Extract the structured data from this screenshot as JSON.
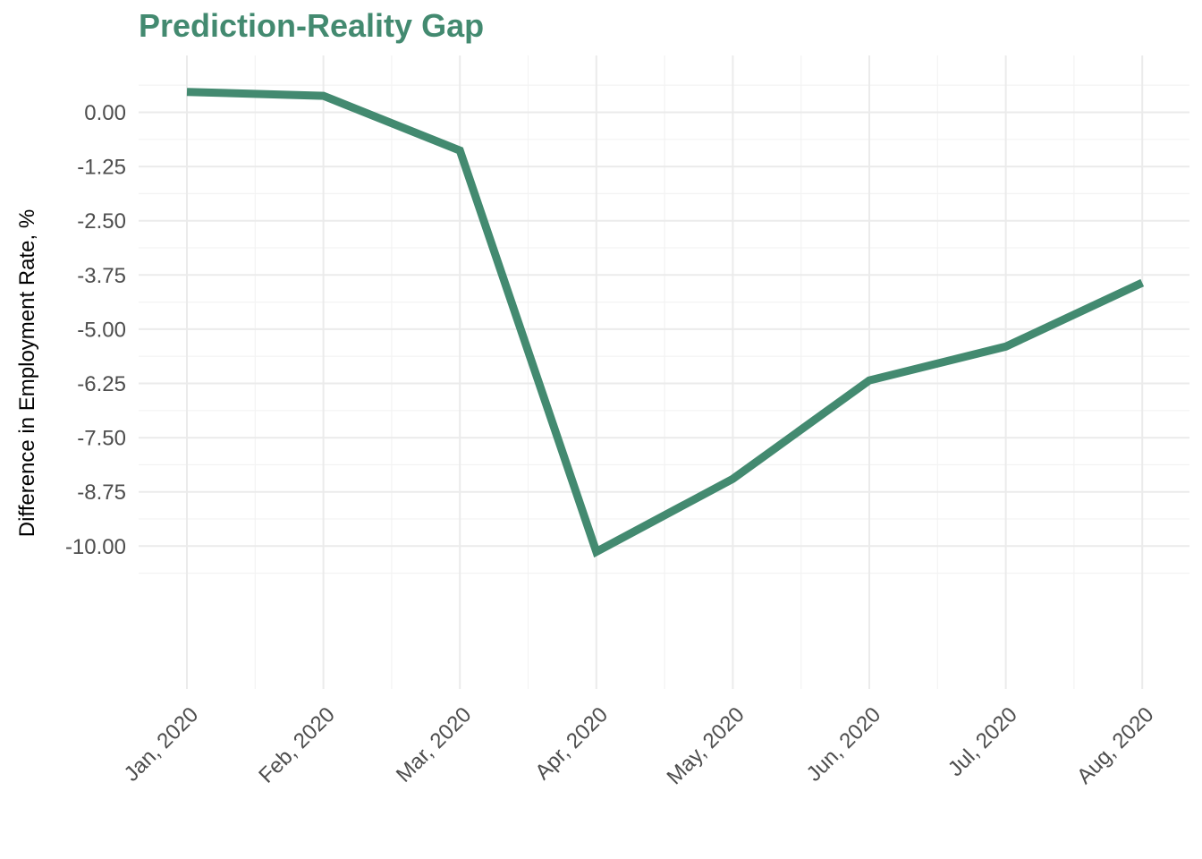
{
  "chart_data": {
    "type": "line",
    "title": "Prediction-Reality Gap",
    "xlabel": "",
    "ylabel": "Difference in Employment Rate, %",
    "categories": [
      "Jan, 2020",
      "Feb, 2020",
      "Mar, 2020",
      "Apr, 2020",
      "May, 2020",
      "Jun, 2020",
      "Jul, 2020",
      "Aug, 2020"
    ],
    "x": [
      "2020-01-01",
      "2020-02-01",
      "2020-03-01",
      "2020-04-01",
      "2020-05-01",
      "2020-06-01",
      "2020-07-01",
      "2020-08-01"
    ],
    "series": [
      {
        "values": [
          0.47,
          0.38,
          -0.88,
          -10.13,
          -8.45,
          -6.18,
          -5.4,
          -3.93
        ]
      }
    ],
    "yticks": [
      "0.00",
      "-1.25",
      "-2.50",
      "-3.75",
      "-5.00",
      "-6.25",
      "-7.50",
      "-8.75",
      "-10.00"
    ],
    "ylim": [
      -10.63,
      1.0
    ],
    "grid": true,
    "legend": "none",
    "colors": {
      "line": "#438a70",
      "title": "#438a70",
      "grid_major": "#ebebeb",
      "grid_minor": "#f3f3f3",
      "tick_text": "#4d4d4d"
    }
  }
}
